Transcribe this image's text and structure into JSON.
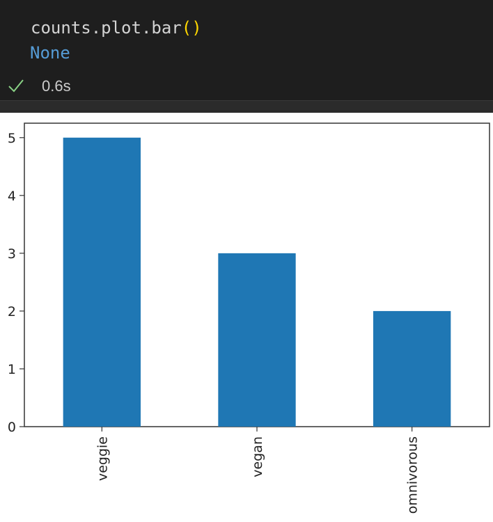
{
  "cell": {
    "code": {
      "object": "counts",
      "dot1": ".",
      "attr1": "plot",
      "dot2": ".",
      "method": "bar",
      "open_paren": "(",
      "close_paren": ")"
    },
    "output_text": "None",
    "status": {
      "icon": "check-icon",
      "exec_time": "0.6s",
      "success_color": "#89d185"
    }
  },
  "chart_data": {
    "type": "bar",
    "categories": [
      "veggie",
      "vegan",
      "omnivorous"
    ],
    "values": [
      5,
      3,
      2
    ],
    "title": "",
    "xlabel": "",
    "ylabel": "",
    "ylim": [
      0,
      5.25
    ],
    "yticks": [
      "0",
      "1",
      "2",
      "3",
      "4",
      "5"
    ],
    "bar_color": "#1f77b4",
    "grid": false,
    "legend": "none"
  }
}
